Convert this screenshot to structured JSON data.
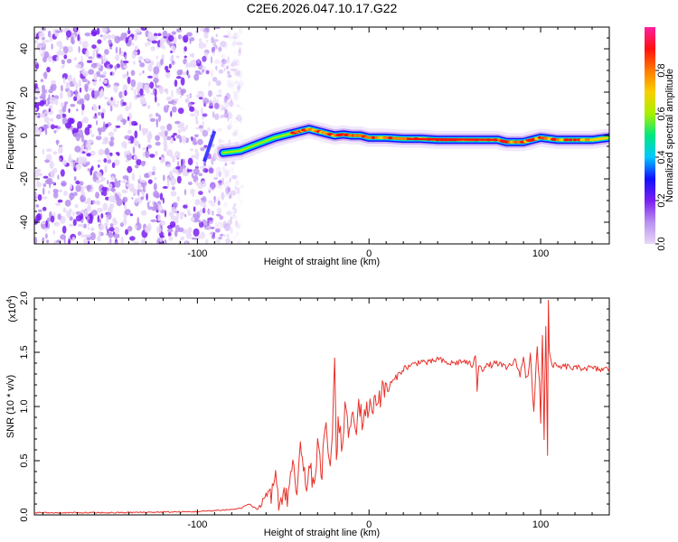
{
  "title": "C2E6.2026.047.10.17.G22",
  "colors": {
    "snr_line": "#e8322a",
    "colormap": [
      "#e8d8f8",
      "#b890f0",
      "#7a1ff0",
      "#1010ff",
      "#00c8ff",
      "#00e880",
      "#a8f000",
      "#f8d000",
      "#ff7a00",
      "#ff1010",
      "#ff20a0"
    ]
  },
  "chart_data": [
    {
      "type": "heatmap",
      "name": "spectrogram",
      "xlabel": "Height of straight line (km)",
      "ylabel": "Frequency (Hz)",
      "xlim": [
        -195,
        140
      ],
      "ylim": [
        -50,
        50
      ],
      "xticks": [
        -100,
        0,
        100
      ],
      "xtick_labels": [
        "-100",
        "0",
        "100"
      ],
      "yticks": [
        -40,
        -20,
        0,
        20,
        40
      ],
      "ytick_labels": [
        "-40",
        "-20",
        "0",
        "20",
        "40"
      ],
      "noise_region_x": [
        -195,
        -80
      ],
      "ridge": {
        "x": [
          -85,
          -75,
          -65,
          -55,
          -45,
          -40,
          -35,
          -30,
          -25,
          -20,
          -15,
          -10,
          -5,
          0,
          10,
          20,
          30,
          40,
          50,
          60,
          70,
          75,
          80,
          85,
          90,
          95,
          100,
          105,
          110,
          120,
          130,
          140
        ],
        "y": [
          -8,
          -7,
          -4,
          -1,
          1,
          2,
          3,
          2,
          1,
          0,
          0.5,
          0,
          0,
          -1,
          -1,
          -1.5,
          -1.5,
          -2,
          -2,
          -2,
          -2,
          -2,
          -3,
          -3,
          -3,
          -2,
          -1,
          -1.5,
          -2,
          -2,
          -2,
          -1
        ]
      },
      "colorbar": {
        "label": "Normalized spectral amplitude",
        "range": [
          0,
          1
        ],
        "ticks": [
          0.0,
          0.2,
          0.4,
          0.6,
          0.8
        ],
        "tick_labels": [
          "0.0",
          "0.2",
          "0.4",
          "0.6",
          "0.8"
        ]
      }
    },
    {
      "type": "line",
      "name": "snr",
      "xlabel": "Height of straight line (km)",
      "ylabel": "SNR (10 * v/v)",
      "exponent_label": "(x10",
      "exponent_power": "4",
      "exponent_close": ")",
      "xlim": [
        -195,
        140
      ],
      "ylim": [
        0,
        2.0
      ],
      "xticks": [
        -100,
        0,
        100
      ],
      "xtick_labels": [
        "-100",
        "0",
        "100"
      ],
      "yticks": [
        0,
        0.5,
        1.0,
        1.5,
        2.0
      ],
      "ytick_labels": [
        "0.0",
        "0.5",
        "1.0",
        "1.5",
        "2.0"
      ],
      "series": [
        {
          "name": "SNR",
          "x": [
            -195,
            -150,
            -100,
            -80,
            -75,
            -70,
            -65,
            -60,
            -57,
            -55,
            -52,
            -50,
            -47,
            -45,
            -42,
            -40,
            -37,
            -35,
            -32,
            -30,
            -28,
            -25,
            -22,
            -20,
            -19,
            -18,
            -16,
            -14,
            -12,
            -10,
            -8,
            -6,
            -4,
            -2,
            0,
            3,
            6,
            9,
            12,
            15,
            20,
            25,
            30,
            35,
            40,
            45,
            50,
            55,
            60,
            62,
            63,
            64,
            66,
            70,
            75,
            80,
            85,
            88,
            90,
            92,
            94,
            96,
            98,
            100,
            101,
            102,
            103,
            104,
            104.5,
            105,
            106,
            108,
            110,
            115,
            120,
            125,
            130,
            135,
            140
          ],
          "y": [
            0.02,
            0.02,
            0.03,
            0.05,
            0.06,
            0.1,
            0.05,
            0.2,
            0.1,
            0.35,
            0.1,
            0.25,
            0.15,
            0.45,
            0.2,
            0.6,
            0.25,
            0.4,
            0.3,
            0.65,
            0.35,
            0.8,
            0.5,
            1.45,
            0.4,
            0.9,
            0.6,
            1.0,
            0.7,
            0.95,
            0.75,
            1.05,
            0.85,
            1.0,
            0.95,
            1.05,
            1.1,
            1.15,
            1.2,
            1.25,
            1.35,
            1.38,
            1.42,
            1.4,
            1.44,
            1.4,
            1.4,
            1.42,
            1.38,
            1.45,
            1.2,
            1.4,
            1.35,
            1.38,
            1.4,
            1.35,
            1.42,
            1.3,
            1.45,
            1.2,
            1.5,
            1.0,
            1.55,
            0.9,
            1.65,
            0.8,
            1.75,
            0.6,
            2.0,
            1.5,
            1.4,
            1.38,
            1.36,
            1.37,
            1.35,
            1.36,
            1.35,
            1.34,
            1.35
          ]
        }
      ]
    }
  ]
}
